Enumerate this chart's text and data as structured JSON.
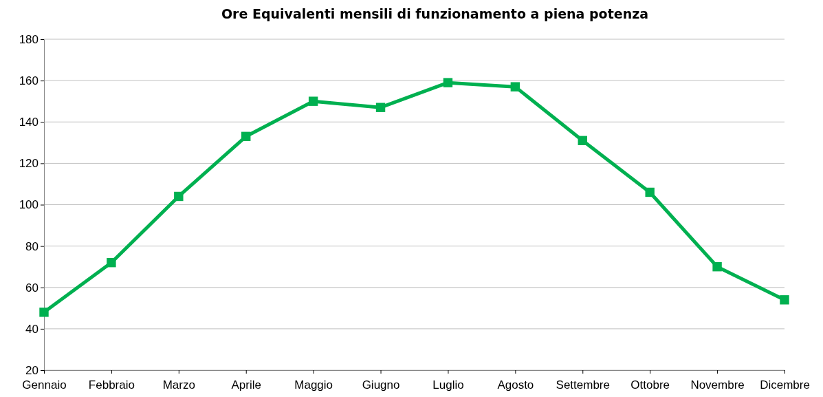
{
  "chart_data": {
    "type": "line",
    "title": "Ore Equivalenti mensili di funzionamento a piena potenza",
    "categories": [
      "Gennaio",
      "Febbraio",
      "Marzo",
      "Aprile",
      "Maggio",
      "Giugno",
      "Luglio",
      "Agosto",
      "Settembre",
      "Ottobre",
      "Novembre",
      "Dicembre"
    ],
    "series": [
      {
        "color": "#00b050",
        "values": [
          48,
          72,
          104,
          133,
          150,
          147,
          159,
          157,
          131,
          106,
          70,
          54
        ]
      }
    ],
    "ylim": [
      20,
      180
    ],
    "yticks": [
      20,
      40,
      60,
      80,
      100,
      120,
      140,
      160,
      180
    ],
    "grid": "y",
    "marker": "square",
    "line_style": "solid"
  }
}
